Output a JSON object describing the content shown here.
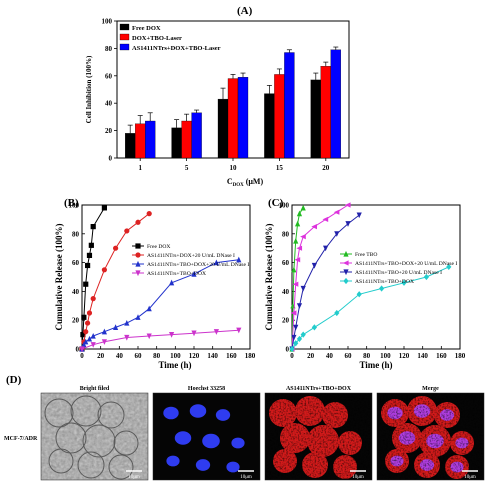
{
  "panels": {
    "a_label": "(A)",
    "b_label": "(B)",
    "c_label": "(C)",
    "d_label": "(D)"
  },
  "chart_data": [
    {
      "panel": "A",
      "type": "bar",
      "ylabel": "Cell Inhibition (100%)",
      "xlabel_main": "C",
      "xlabel_sub": "DOX",
      "xlabel_unit": "(μM)",
      "ylim": [
        0,
        100
      ],
      "yticks": [
        "0",
        "20",
        "40",
        "60",
        "80",
        "100"
      ],
      "categories": [
        "1",
        "5",
        "10",
        "15",
        "20"
      ],
      "legend_position": "top-left",
      "series": [
        {
          "name": "Free DOX",
          "color": "#000000",
          "values": [
            18,
            22,
            43,
            47,
            57
          ],
          "errors": [
            6,
            6,
            8,
            6,
            5
          ]
        },
        {
          "name": "DOX+TBO-Laser",
          "color": "#ff0000",
          "values": [
            25,
            27,
            58,
            61,
            67
          ],
          "errors": [
            6,
            5,
            3,
            4,
            3
          ]
        },
        {
          "name": "AS1411NTrs+DOX+TBO-Laser",
          "color": "#0000ff",
          "values": [
            27,
            33,
            59,
            77,
            79
          ],
          "errors": [
            6,
            2,
            3,
            2,
            2
          ]
        }
      ]
    },
    {
      "panel": "B",
      "type": "line",
      "ylabel": "Cumulative Release (100%)",
      "xlabel": "Time (h)",
      "xlim": [
        0,
        180
      ],
      "ylim": [
        0,
        100
      ],
      "xticks": [
        "0",
        "20",
        "40",
        "60",
        "80",
        "100",
        "120",
        "140",
        "160",
        "180"
      ],
      "yticks": [
        "0",
        "20",
        "40",
        "60",
        "80",
        "100"
      ],
      "legend_position": "top-right",
      "series": [
        {
          "name": "Free DOX",
          "color": "#000000",
          "marker": "square",
          "x": [
            0,
            1,
            2,
            4,
            6,
            8,
            10,
            12,
            24
          ],
          "y": [
            0,
            10,
            22,
            45,
            58,
            65,
            72,
            85,
            98
          ]
        },
        {
          "name": "AS1411NTrs+DOX+20 U/mL DNase I",
          "color": "#dd2222",
          "marker": "circle",
          "x": [
            0,
            2,
            4,
            6,
            8,
            12,
            24,
            36,
            48,
            60,
            72
          ],
          "y": [
            0,
            5,
            12,
            18,
            25,
            35,
            55,
            70,
            82,
            88,
            94
          ]
        },
        {
          "name": "AS1411NTrs+TBO+DOX+20 U/mL DNase I",
          "color": "#2233cc",
          "marker": "triangle",
          "x": [
            0,
            2,
            4,
            8,
            12,
            24,
            36,
            48,
            60,
            72,
            96,
            120,
            144,
            168
          ],
          "y": [
            0,
            3,
            5,
            7,
            9,
            12,
            15,
            18,
            22,
            28,
            46,
            52,
            60,
            62
          ]
        },
        {
          "name": "AS1411NTrs+TBO+DOX",
          "color": "#cc33cc",
          "marker": "triangle-down",
          "x": [
            0,
            12,
            24,
            48,
            72,
            96,
            120,
            144,
            168
          ],
          "y": [
            0,
            3,
            5,
            8,
            9,
            10,
            11,
            12,
            13
          ]
        }
      ]
    },
    {
      "panel": "C",
      "type": "line",
      "ylabel": "Cumulative Release (100%)",
      "xlabel": "Time (h)",
      "xlim": [
        0,
        180
      ],
      "ylim": [
        0,
        100
      ],
      "xticks": [
        "0",
        "20",
        "40",
        "60",
        "80",
        "100",
        "120",
        "140",
        "160",
        "180"
      ],
      "yticks": [
        "0",
        "20",
        "40",
        "60",
        "80",
        "100"
      ],
      "legend_position": "middle-right",
      "series": [
        {
          "name": "Free TBO",
          "color": "#22bb22",
          "marker": "triangle",
          "x": [
            0,
            1,
            2,
            4,
            6,
            8,
            12
          ],
          "y": [
            0,
            30,
            55,
            75,
            87,
            94,
            98
          ]
        },
        {
          "name": "AS1411NTrs+TBO+DOX+20 U/mL DNase I",
          "color": "#dd33dd",
          "marker": "triangle-left",
          "x": [
            0,
            2,
            4,
            6,
            8,
            12,
            24,
            36,
            48,
            60
          ],
          "y": [
            0,
            25,
            45,
            62,
            70,
            78,
            85,
            90,
            95,
            100
          ]
        },
        {
          "name": "AS1411NTrs+TBO+20 U/mL DNase I",
          "color": "#2222aa",
          "marker": "triangle-down",
          "x": [
            0,
            2,
            4,
            8,
            12,
            24,
            36,
            48,
            60,
            72
          ],
          "y": [
            0,
            8,
            15,
            30,
            42,
            58,
            70,
            80,
            87,
            93
          ]
        },
        {
          "name": "AS1411NTrs+TBO+DOX",
          "color": "#22cccc",
          "marker": "diamond",
          "x": [
            0,
            4,
            8,
            12,
            24,
            48,
            72,
            96,
            120,
            144,
            168
          ],
          "y": [
            0,
            4,
            7,
            10,
            15,
            25,
            38,
            42,
            46,
            50,
            57
          ]
        }
      ]
    }
  ],
  "micrographs": {
    "row_label": "MCF-7/ADR",
    "scale_bar": "10μm",
    "columns": [
      {
        "title": "Bright filed",
        "style": "gray"
      },
      {
        "title": "Hoechst 33258",
        "style": "blue"
      },
      {
        "title": "AS1411NTrs+TBO+DOX",
        "style": "red"
      },
      {
        "title": "Merge",
        "style": "merge"
      }
    ]
  }
}
